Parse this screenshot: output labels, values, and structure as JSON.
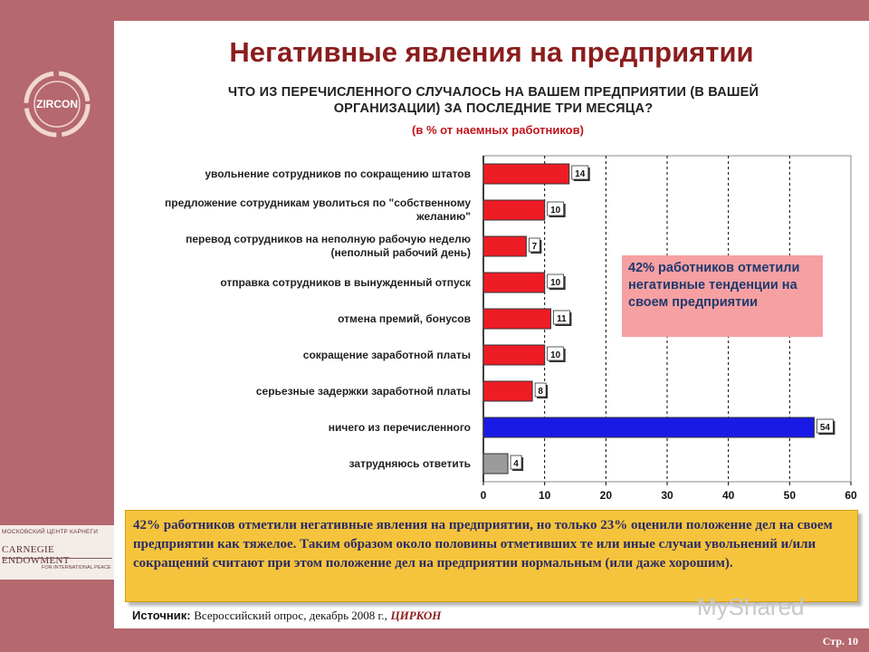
{
  "slide": {
    "title": "Негативные явления на предприятии",
    "question": "ЧТО ИЗ ПЕРЕЧИСЛЕННОГО СЛУЧАЛОСЬ НА ВАШЕМ ПРЕДПРИЯТИИ (В ВАШЕЙ ОРГАНИЗАЦИИ) ЗА ПОСЛЕДНИЕ ТРИ МЕСЯЦА?",
    "units": "(в % от наемных работников)",
    "logo_text": "ZIRCON",
    "carnegie_line1": "МОСКОВСКИЙ ЦЕНТР КАРНЕГИ",
    "carnegie_line2": "CARNEGIE ENDOWMENT",
    "carnegie_line3": "FOR INTERNATIONAL PEACE",
    "callout": "42% работников отметили негативные тенденции на своем предприятии",
    "summary": "42% работников отметили негативные явления на предприятии, но только 23% оценили положение дел на своем предприятии как тяжелое. Таким образом около половины отметивших те или иные случаи увольнений и/или сокращений считают при этом положение дел на предприятии нормальным (или даже хорошим).",
    "source_label": "Источник:",
    "source_text": "Всероссийский опрос, декабрь 2008 г.,",
    "source_org": "ЦИРКОН",
    "watermark": "MyShared",
    "page": "Стр. 10",
    "colors": {
      "frame": "#b5686e",
      "title": "#8b1d1d",
      "callout": "#f6a0a2",
      "summary": "#f5c43c"
    }
  },
  "chart_data": {
    "type": "bar",
    "orientation": "horizontal",
    "categories": [
      "увольнение сотрудников по сокращению штатов",
      "предложение сотрудникам уволиться по \"собственному желанию\"",
      "перевод сотрудников на неполную рабочую неделю (неполный рабочий день)",
      "отправка сотрудников в вынужденный отпуск",
      "отмена премий, бонусов",
      "сокращение заработной платы",
      "серьезные задержки заработной платы",
      "ничего из перечисленного",
      "затрудняюсь ответить"
    ],
    "values": [
      14,
      10,
      7,
      10,
      11,
      10,
      8,
      54,
      4
    ],
    "bar_colors": [
      "#ee1c25",
      "#ee1c25",
      "#ee1c25",
      "#ee1c25",
      "#ee1c25",
      "#ee1c25",
      "#ee1c25",
      "#1a1ae6",
      "#9b9b9b"
    ],
    "xlim": [
      0,
      60
    ],
    "xticks": [
      0,
      10,
      20,
      30,
      40,
      50,
      60
    ],
    "grid": true
  }
}
